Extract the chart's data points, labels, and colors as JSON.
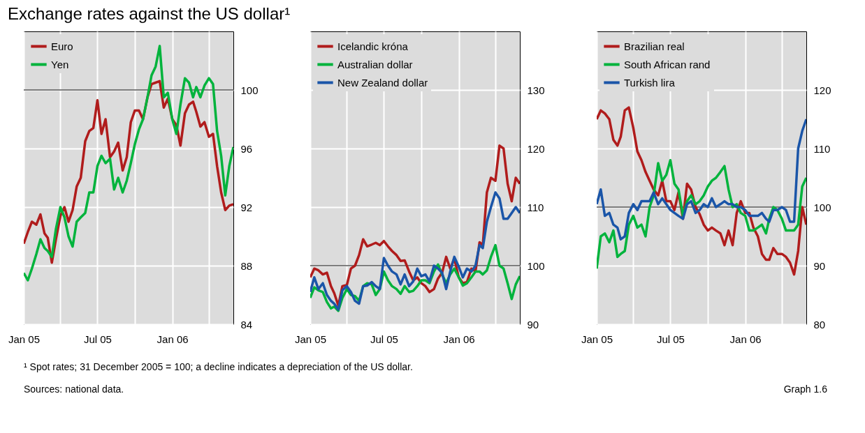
{
  "chart_data": [
    {
      "type": "line",
      "title": "Exchange rates against the US dollar¹",
      "annotations": [
        "¹  Spot rates; 31 December 2005 = 100; a decline indicates a depreciation of the US dollar.",
        "Sources: national data.",
        "Graph 1.6"
      ],
      "x": [
        "2005-01-01",
        "2005-01-11",
        "2005-01-21",
        "2005-02-01",
        "2005-02-11",
        "2005-02-21",
        "2005-03-01",
        "2005-03-11",
        "2005-03-21",
        "2005-04-01",
        "2005-04-11",
        "2005-04-21",
        "2005-05-01",
        "2005-05-11",
        "2005-05-21",
        "2005-06-01",
        "2005-06-11",
        "2005-06-21",
        "2005-07-01",
        "2005-07-11",
        "2005-07-21",
        "2005-08-01",
        "2005-08-11",
        "2005-08-21",
        "2005-09-01",
        "2005-09-11",
        "2005-09-21",
        "2005-10-01",
        "2005-10-11",
        "2005-10-21",
        "2005-11-01",
        "2005-11-11",
        "2005-11-21",
        "2005-12-01",
        "2005-12-11",
        "2005-12-21",
        "2006-01-01",
        "2006-01-11",
        "2006-01-21",
        "2006-02-01",
        "2006-02-11",
        "2006-02-21",
        "2006-03-01",
        "2006-03-11",
        "2006-03-21",
        "2006-04-01",
        "2006-04-11",
        "2006-04-21",
        "2006-05-01",
        "2006-05-11",
        "2006-05-21",
        "2006-05-31"
      ],
      "xlim": [
        "2005-01-01",
        "2006-05-31"
      ],
      "xticks": [
        {
          "value": "2005-01-01",
          "label": "Jan 05"
        },
        {
          "value": "2005-04-01",
          "label": null
        },
        {
          "value": "2005-07-01",
          "label": "Jul 05"
        },
        {
          "value": "2005-10-01",
          "label": null
        },
        {
          "value": "2006-01-01",
          "label": "Jan 06"
        },
        {
          "value": "2006-04-01",
          "label": null
        }
      ],
      "ylim": [
        84,
        104
      ],
      "yticks": [
        84,
        88,
        92,
        96,
        100
      ],
      "grid": true,
      "legend": "top left",
      "ref_lines": [
        {
          "axis": "y",
          "value": 100,
          "color": "#555555"
        }
      ],
      "series": [
        {
          "name": "Euro",
          "color": "#b01c1c",
          "values": [
            89.5,
            90.3,
            91.0,
            90.8,
            91.5,
            90.2,
            89.9,
            88.2,
            89.8,
            91.4,
            92.0,
            91.0,
            91.8,
            93.4,
            94.0,
            96.5,
            97.2,
            97.4,
            99.3,
            97.0,
            98.0,
            95.4,
            95.8,
            96.4,
            94.5,
            95.4,
            97.8,
            98.6,
            98.6,
            98.0,
            99.5,
            100.4,
            100.5,
            100.6,
            98.8,
            99.4,
            98.0,
            97.6,
            96.2,
            98.4,
            99.0,
            99.2,
            98.5,
            97.5,
            97.8,
            96.8,
            97.0,
            94.8,
            93.0,
            91.8,
            92.1,
            92.2
          ]
        },
        {
          "name": "Yen",
          "color": "#00b33c",
          "values": [
            87.5,
            87.0,
            87.8,
            88.8,
            89.8,
            89.2,
            89.0,
            88.6,
            90.5,
            92.0,
            91.3,
            90.0,
            89.3,
            91.0,
            91.3,
            91.6,
            93.0,
            93.0,
            94.8,
            95.5,
            95.0,
            95.3,
            93.2,
            94.0,
            93.0,
            93.8,
            95.0,
            96.3,
            97.3,
            98.0,
            99.5,
            101.0,
            101.6,
            103.0,
            99.5,
            99.8,
            98.0,
            97.0,
            99.0,
            100.8,
            100.5,
            99.5,
            100.2,
            99.5,
            100.3,
            100.8,
            100.4,
            97.2,
            95.5,
            92.8,
            94.8,
            96.1
          ]
        }
      ]
    },
    {
      "type": "line",
      "x": [
        "2005-01-01",
        "2005-01-11",
        "2005-01-21",
        "2005-02-01",
        "2005-02-11",
        "2005-02-21",
        "2005-03-01",
        "2005-03-11",
        "2005-03-21",
        "2005-04-01",
        "2005-04-11",
        "2005-04-21",
        "2005-05-01",
        "2005-05-11",
        "2005-05-21",
        "2005-06-01",
        "2005-06-11",
        "2005-06-21",
        "2005-07-01",
        "2005-07-11",
        "2005-07-21",
        "2005-08-01",
        "2005-08-11",
        "2005-08-21",
        "2005-09-01",
        "2005-09-11",
        "2005-09-21",
        "2005-10-01",
        "2005-10-11",
        "2005-10-21",
        "2005-11-01",
        "2005-11-11",
        "2005-11-21",
        "2005-12-01",
        "2005-12-11",
        "2005-12-21",
        "2006-01-01",
        "2006-01-11",
        "2006-01-21",
        "2006-02-01",
        "2006-02-11",
        "2006-02-21",
        "2006-03-01",
        "2006-03-11",
        "2006-03-21",
        "2006-04-01",
        "2006-04-11",
        "2006-04-21",
        "2006-05-01",
        "2006-05-11",
        "2006-05-21",
        "2006-05-31"
      ],
      "xlim": [
        "2005-01-01",
        "2006-05-31"
      ],
      "xticks": [
        {
          "value": "2005-01-01",
          "label": "Jan 05"
        },
        {
          "value": "2005-04-01",
          "label": null
        },
        {
          "value": "2005-07-01",
          "label": "Jul 05"
        },
        {
          "value": "2005-10-01",
          "label": null
        },
        {
          "value": "2006-01-01",
          "label": "Jan 06"
        },
        {
          "value": "2006-04-01",
          "label": null
        }
      ],
      "ylim": [
        90,
        140
      ],
      "yticks": [
        90,
        100,
        110,
        120,
        130
      ],
      "grid": true,
      "legend": "top left",
      "ref_lines": [
        {
          "axis": "y",
          "value": 100,
          "color": "#555555"
        }
      ],
      "series": [
        {
          "name": "Icelandic króna",
          "color": "#b01c1c",
          "values": [
            98.0,
            99.5,
            99.2,
            98.5,
            98.8,
            96.5,
            95.3,
            93.2,
            96.5,
            96.7,
            99.5,
            100.0,
            101.8,
            104.5,
            103.3,
            103.6,
            103.9,
            103.5,
            104.2,
            103.3,
            102.5,
            101.8,
            100.8,
            100.9,
            99.0,
            97.5,
            98.0,
            97.0,
            96.5,
            95.5,
            96.0,
            97.8,
            98.8,
            101.5,
            99.5,
            101.2,
            98.0,
            97.0,
            97.2,
            99.5,
            99.0,
            104.0,
            103.5,
            112.5,
            115.0,
            114.5,
            120.5,
            120.0,
            114.0,
            111.0,
            115.0,
            114.0
          ]
        },
        {
          "name": "Australian dollar",
          "color": "#00b33c",
          "values": [
            94.5,
            96.3,
            95.8,
            95.5,
            93.8,
            92.7,
            93.0,
            92.3,
            94.5,
            96.0,
            95.0,
            94.8,
            94.0,
            96.5,
            97.0,
            96.8,
            95.0,
            96.0,
            99.0,
            97.5,
            96.5,
            96.0,
            95.2,
            96.5,
            95.5,
            95.7,
            96.5,
            97.5,
            97.5,
            97.0,
            99.0,
            100.2,
            98.5,
            97.0,
            98.5,
            99.5,
            98.0,
            96.6,
            97.0,
            98.0,
            99.0,
            99.0,
            98.5,
            99.2,
            101.5,
            103.5,
            100.0,
            99.5,
            97.0,
            94.3,
            96.8,
            98.2
          ]
        },
        {
          "name": "New Zealand dollar",
          "color": "#1a55a8",
          "values": [
            95.5,
            98.0,
            96.0,
            97.0,
            95.0,
            94.0,
            93.5,
            92.5,
            95.8,
            96.5,
            95.5,
            94.0,
            93.5,
            96.5,
            96.6,
            97.2,
            96.5,
            96.0,
            101.3,
            100.0,
            99.0,
            98.5,
            96.8,
            98.5,
            96.5,
            97.3,
            99.5,
            98.2,
            98.5,
            97.3,
            100.0,
            99.5,
            98.8,
            96.0,
            99.0,
            101.5,
            99.8,
            98.0,
            99.5,
            99.0,
            100.0,
            103.5,
            103.0,
            107.5,
            110.0,
            112.5,
            111.5,
            108.0,
            108.0,
            109.0,
            110.0,
            109.0
          ]
        }
      ]
    },
    {
      "type": "line",
      "x": [
        "2005-01-01",
        "2005-01-11",
        "2005-01-21",
        "2005-02-01",
        "2005-02-11",
        "2005-02-21",
        "2005-03-01",
        "2005-03-11",
        "2005-03-21",
        "2005-04-01",
        "2005-04-11",
        "2005-04-21",
        "2005-05-01",
        "2005-05-11",
        "2005-05-21",
        "2005-06-01",
        "2005-06-11",
        "2005-06-21",
        "2005-07-01",
        "2005-07-11",
        "2005-07-21",
        "2005-08-01",
        "2005-08-11",
        "2005-08-21",
        "2005-09-01",
        "2005-09-11",
        "2005-09-21",
        "2005-10-01",
        "2005-10-11",
        "2005-10-21",
        "2005-11-01",
        "2005-11-11",
        "2005-11-21",
        "2005-12-01",
        "2005-12-11",
        "2005-12-21",
        "2006-01-01",
        "2006-01-11",
        "2006-01-21",
        "2006-02-01",
        "2006-02-11",
        "2006-02-21",
        "2006-03-01",
        "2006-03-11",
        "2006-03-21",
        "2006-04-01",
        "2006-04-11",
        "2006-04-21",
        "2006-05-01",
        "2006-05-11",
        "2006-05-21",
        "2006-05-31"
      ],
      "xlim": [
        "2005-01-01",
        "2006-05-31"
      ],
      "xticks": [
        {
          "value": "2005-01-01",
          "label": "Jan 05"
        },
        {
          "value": "2005-04-01",
          "label": null
        },
        {
          "value": "2005-07-01",
          "label": "Jul 05"
        },
        {
          "value": "2005-10-01",
          "label": null
        },
        {
          "value": "2006-01-01",
          "label": "Jan 06"
        },
        {
          "value": "2006-04-01",
          "label": null
        }
      ],
      "ylim": [
        80,
        130
      ],
      "yticks": [
        80,
        90,
        100,
        110,
        120
      ],
      "grid": true,
      "legend": "top left",
      "ref_lines": [
        {
          "axis": "y",
          "value": 100,
          "color": "#555555"
        }
      ],
      "series": [
        {
          "name": "Brazilian real",
          "color": "#b01c1c",
          "values": [
            115.0,
            116.5,
            116.0,
            115.0,
            111.5,
            110.5,
            112.0,
            116.5,
            117.0,
            113.5,
            109.5,
            108.0,
            106.0,
            104.5,
            103.0,
            102.0,
            104.5,
            101.0,
            101.0,
            99.5,
            102.5,
            98.0,
            104.0,
            103.0,
            100.0,
            98.8,
            97.0,
            96.0,
            96.5,
            96.0,
            95.5,
            93.5,
            96.0,
            93.5,
            99.0,
            101.0,
            99.0,
            99.0,
            96.5,
            95.0,
            92.0,
            91.0,
            91.0,
            93.0,
            92.0,
            92.0,
            91.5,
            90.5,
            88.5,
            92.5,
            100.0,
            97.0
          ]
        },
        {
          "name": "South African rand",
          "color": "#00b33c",
          "values": [
            89.5,
            95.0,
            95.5,
            94.0,
            96.0,
            91.5,
            92.0,
            92.5,
            97.0,
            98.5,
            96.5,
            97.0,
            95.0,
            100.0,
            102.0,
            107.5,
            104.5,
            105.5,
            108.0,
            104.0,
            103.0,
            98.5,
            101.0,
            102.0,
            100.5,
            101.0,
            102.0,
            103.5,
            104.5,
            105.0,
            106.0,
            107.0,
            103.0,
            100.0,
            100.5,
            99.0,
            98.5,
            96.0,
            96.0,
            96.5,
            97.0,
            95.5,
            98.0,
            100.0,
            99.5,
            98.0,
            96.0,
            96.0,
            96.0,
            97.0,
            103.5,
            105.0
          ]
        },
        {
          "name": "Turkish lira",
          "color": "#1a55a8",
          "values": [
            100.5,
            103.0,
            98.5,
            99.0,
            97.0,
            96.5,
            94.5,
            95.0,
            99.0,
            100.5,
            99.5,
            101.0,
            101.0,
            101.0,
            102.5,
            100.5,
            101.5,
            100.5,
            99.5,
            99.0,
            98.5,
            98.0,
            100.5,
            101.0,
            99.0,
            99.5,
            100.5,
            100.0,
            101.5,
            100.0,
            100.5,
            101.0,
            100.5,
            100.5,
            100.0,
            100.0,
            99.5,
            98.5,
            98.5,
            98.5,
            99.0,
            98.0,
            97.5,
            99.5,
            99.5,
            100.0,
            99.5,
            97.5,
            97.5,
            110.0,
            113.0,
            115.0
          ]
        }
      ]
    }
  ]
}
